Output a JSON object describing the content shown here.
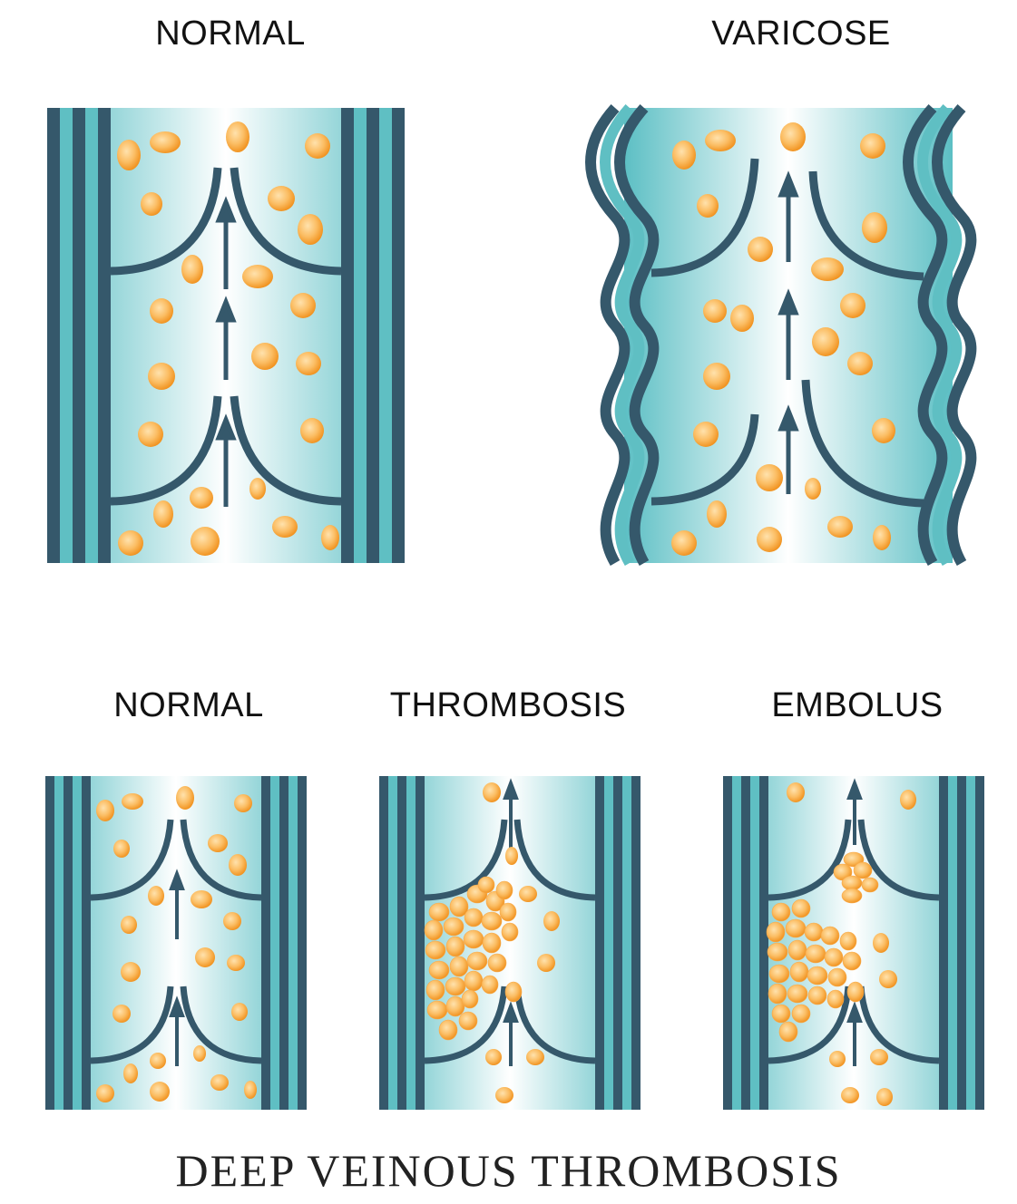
{
  "title": "DEEP VEINOUS THROMBOSIS",
  "colors": {
    "wall": "#35586b",
    "wall_light": "#5fbfc3",
    "lumen_edge": "#5cbfc4",
    "lumen_center": "#ffffff",
    "cell_light": "#ffd79a",
    "cell_dark": "#f39a25"
  },
  "panels": [
    {
      "id": "top-normal",
      "label": "NORMAL",
      "condition": "normal"
    },
    {
      "id": "top-varicose",
      "label": "VARICOSE",
      "condition": "varicose"
    },
    {
      "id": "bottom-normal",
      "label": "NORMAL",
      "condition": "normal"
    },
    {
      "id": "bottom-thrombosis",
      "label": "THROMBOSIS",
      "condition": "thrombosis"
    },
    {
      "id": "bottom-embolus",
      "label": "EMBOLUS",
      "condition": "embolus"
    }
  ]
}
